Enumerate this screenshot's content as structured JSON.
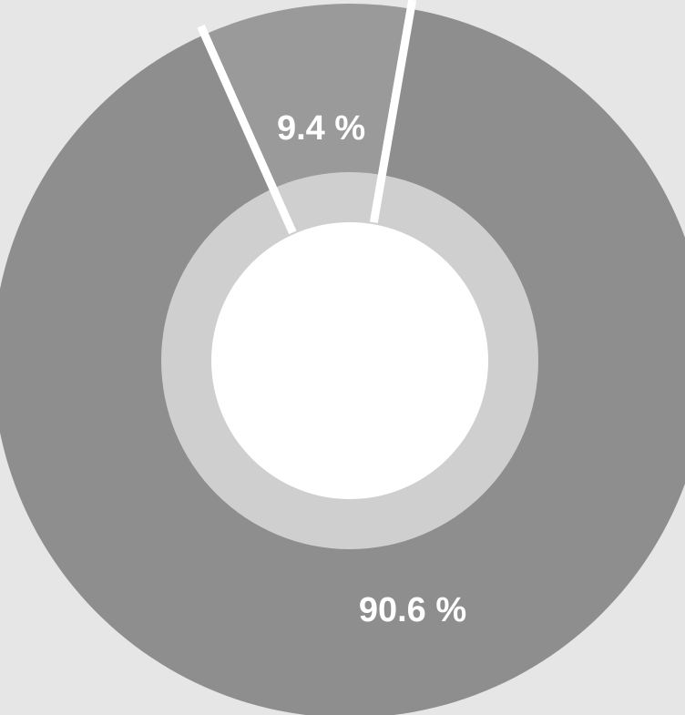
{
  "chart_data": {
    "type": "pie",
    "style": "donut",
    "slices": [
      {
        "value": 9.4,
        "label": "9.4 %"
      },
      {
        "value": 90.6,
        "label": "90.6 %"
      }
    ],
    "start_angle_deg": -24,
    "colors": {
      "background": "#e6e6e6",
      "outer_ring": [
        "#9a9a9a",
        "#8e8e8e"
      ],
      "inner_ring": "#cfcfcf",
      "hole": "#ffffff",
      "separator": "#ffffff",
      "label": "#ffffff"
    }
  }
}
